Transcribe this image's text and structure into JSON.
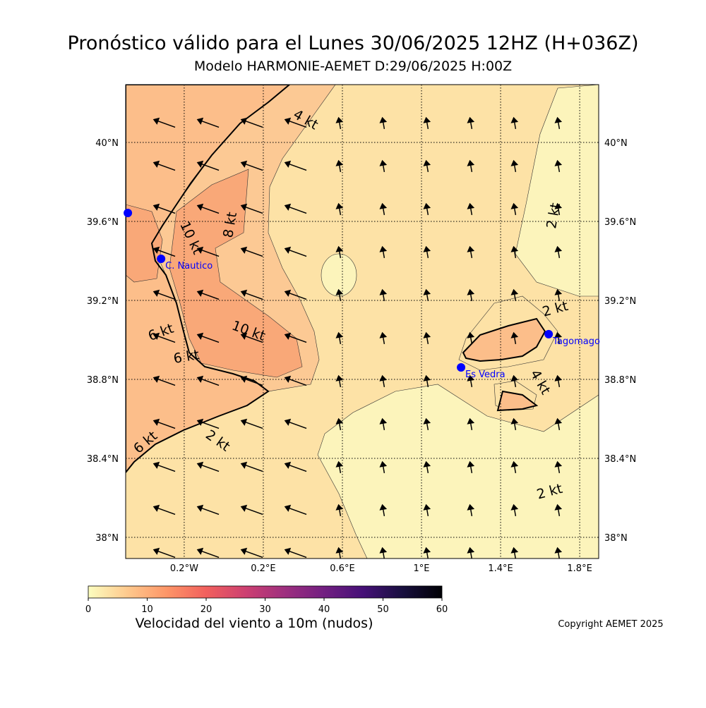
{
  "title": "Pronóstico válido para el Lunes 30/06/2025 12HZ (H+036Z)",
  "subtitle": "Modelo HARMONIE-AEMET D:29/06/2025 H:00Z",
  "map": {
    "lonlim": [
      -0.496,
      1.896
    ],
    "latlim": [
      37.893,
      40.293
    ],
    "lonticks": [
      {
        "value": -0.2,
        "label": "0.2°W"
      },
      {
        "value": 0.2,
        "label": "0.2°E"
      },
      {
        "value": 0.6,
        "label": "0.6°E"
      },
      {
        "value": 1,
        "label": "1°E"
      },
      {
        "value": 1.4,
        "label": "1.4°E"
      },
      {
        "value": 1.8,
        "label": "1.8°E"
      }
    ],
    "latticks": [
      {
        "value": 40,
        "label": "40°N"
      },
      {
        "value": 39.6,
        "label": "39.6°N"
      },
      {
        "value": 39.2,
        "label": "39.2°N"
      },
      {
        "value": 38.8,
        "label": "38.8°N"
      },
      {
        "value": 38.4,
        "label": "38.4°N"
      },
      {
        "value": 38,
        "label": "38°N"
      }
    ],
    "grid": true,
    "stations": [
      {
        "name": null,
        "lon": -0.485,
        "lat": 39.643
      },
      {
        "name": "C. Nautico",
        "lon": -0.317,
        "lat": 39.411
      },
      {
        "name": "Tagomago",
        "lon": 1.643,
        "lat": 39.029
      },
      {
        "name": "Es Vedra",
        "lon": 1.2,
        "lat": 38.861
      }
    ],
    "station_color": "#0000ff",
    "contour_labels": [
      "4 kt",
      "8 kt",
      "10 kt",
      "10 kt",
      "6 kt",
      "6 kt",
      "6 kt",
      "2 kt",
      "2 kt",
      "2 kt",
      "4 kt",
      "2 kt"
    ]
  },
  "colorbar": {
    "label": "Velocidad del viento a 10m (nudos)",
    "lim": [
      0,
      60
    ],
    "ticks": [
      0,
      10,
      20,
      30,
      40,
      50,
      60
    ],
    "colormap": [
      "#fcfdbf",
      "#fec98d",
      "#fd9567",
      "#f1605d",
      "#cd4071",
      "#9e2f7f",
      "#721f81",
      "#451077",
      "#180f3e",
      "#000004"
    ]
  },
  "copyright": "Copyright AEMET 2025"
}
